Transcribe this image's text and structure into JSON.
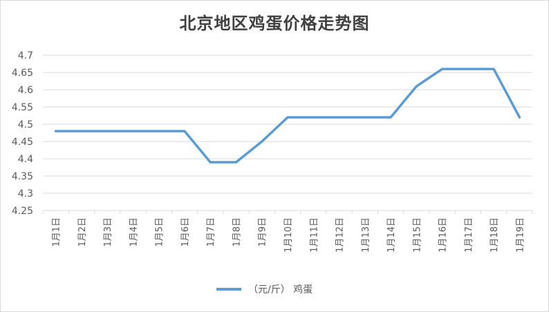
{
  "chart_data": {
    "type": "line",
    "title": "北京地区鸡蛋价格走势图",
    "categories": [
      "1月1日",
      "1月2日",
      "1月3日",
      "1月4日",
      "1月5日",
      "1月6日",
      "1月7日",
      "1月8日",
      "1月9日",
      "1月10日",
      "1月11日",
      "1月12日",
      "1月13日",
      "1月14日",
      "1月15日",
      "1月16日",
      "1月17日",
      "1月18日",
      "1月19日"
    ],
    "series": [
      {
        "name": "（元/斤） 鸡蛋",
        "color": "#5B9BD5",
        "values": [
          4.48,
          4.48,
          4.48,
          4.48,
          4.48,
          4.48,
          4.39,
          4.39,
          4.45,
          4.52,
          4.52,
          4.52,
          4.52,
          4.52,
          4.61,
          4.66,
          4.66,
          4.66,
          4.52
        ]
      }
    ],
    "ylim": [
      4.25,
      4.7
    ],
    "yticks": [
      "4.25",
      "4.3",
      "4.35",
      "4.4",
      "4.45",
      "4.5",
      "4.55",
      "4.6",
      "4.65",
      "4.7"
    ],
    "grid": true,
    "legend_position": "bottom",
    "xlabel": "",
    "ylabel": ""
  }
}
